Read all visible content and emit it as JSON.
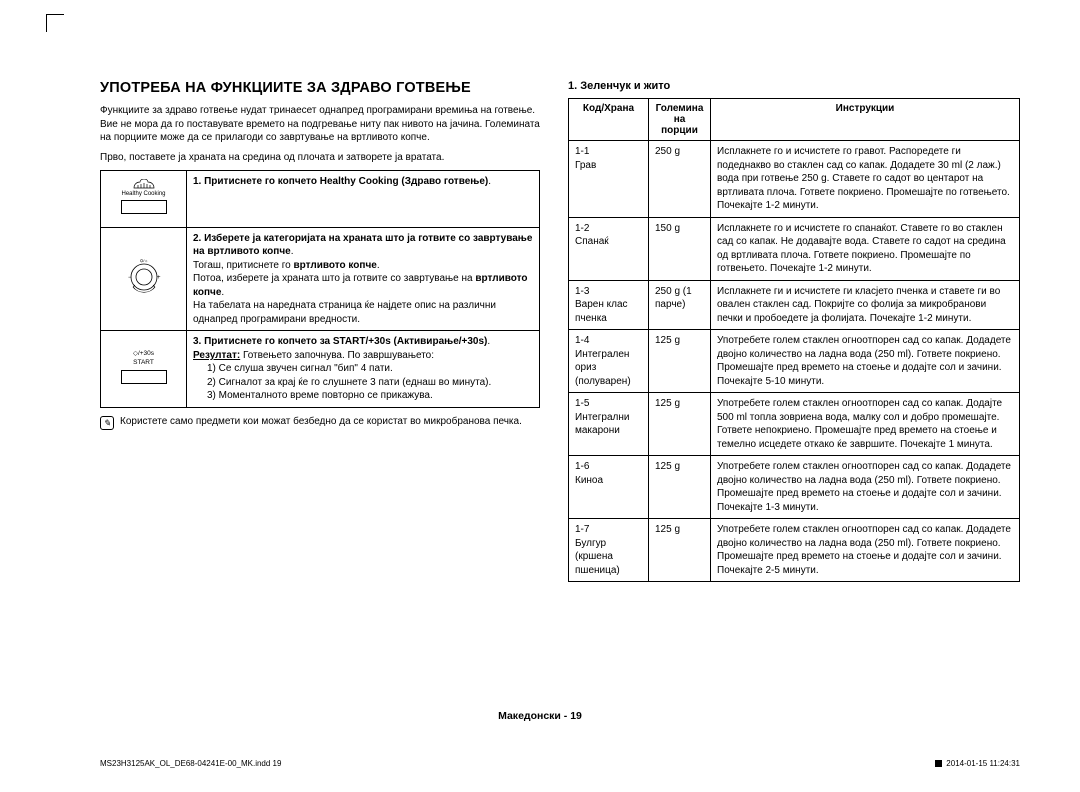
{
  "crop_mark_color": "#000000",
  "left": {
    "heading": "УПОТРЕБА НА ФУНКЦИИТЕ ЗА ЗДРАВО ГОТВЕЊЕ",
    "intro1": "Функциите за здраво готвење нудат тринаесет однапред програмирани времиња на готвење. Вие не мора да го поставувате времето на подгревање ниту пак нивото на јачина. Големината на порциите може да се прилагоди со завртување на вртливото копче.",
    "intro2": "Прво, поставете ја храната на средина од плочата и затворете ја вратата.",
    "hc_icon_label": "Healthy Cooking",
    "start_label": "START",
    "start_sym": "◇/+30s",
    "step1_pre": "1.  Притиснете го копчето ",
    "step1_bold": "Healthy Cooking (Здраво готвење)",
    "step1_post": ".",
    "step2_pre": "2.  Изберете ја категоријата на храната што ја готвите со завртување на ",
    "step2_bold1": "вртливото копче",
    "step2_mid1": ".",
    "step2_line2a": "Тогаш, притиснете го ",
    "step2_bold2": "вртливото копче",
    "step2_line2b": ".",
    "step2_line3a": "Потоа, изберете ја храната што ја готвите со завртување на ",
    "step2_bold3": "вртливото копче",
    "step2_line3b": ".",
    "step2_line4": "На табелата на наредната страница ќе најдете опис на различни однапред програмирани вредности.",
    "step3_pre": "3.  Притиснете го копчето за ",
    "step3_bold": "START/+30s (Активирање/+30s)",
    "step3_post": ".",
    "result_label": "Резултат:",
    "result_text": " Готвењето започнува. По завршувањето:",
    "res_1": "Се слуша звучен сигнал \"бип\" 4 пати.",
    "res_2": "Сигналот за крај ќе го слушнете 3 пати (еднаш во минута).",
    "res_3": "Моменталното време повторно се прикажува.",
    "note": "Користете само предмети кои можат безбедно да се користат во микробранова печка."
  },
  "right": {
    "subheading": "1. Зеленчук и жито",
    "th_code": "Код/Храна",
    "th_portion_l1": "Големина",
    "th_portion_l2": "на порции",
    "th_instr": "Инструкции",
    "rows": [
      {
        "code_num": "1-1",
        "code_name": "Грав",
        "portion": "250 g",
        "instr": "Исплакнете го и исчистете го гравот. Распоредете ги подеднакво во стаклен сад со капак. Додадете 30 ml (2 лаж.) вода при готвење 250 g. Ставете го садот во центарот на вртливата плоча. Гответе покриено. Промешајте по готвењето. Почекајте 1-2 минути."
      },
      {
        "code_num": "1-2",
        "code_name": "Спанаќ",
        "portion": "150 g",
        "instr": "Исплакнете го и исчистете го спанаќот. Ставете го во стаклен сад со капак. Не додавајте вода. Ставете го садот на средина од вртливата плоча. Гответе покриено. Промешајте по готвењето. Почекајте 1-2 минути."
      },
      {
        "code_num": "1-3",
        "code_name": "Варен клас пченка",
        "portion": "250 g (1 парче)",
        "instr": "Исплакнете ги и исчистете ги класјето пченка и ставете ги во овален стаклен сад. Покријте со фолија за микробранови печки и пробоедете ја фолијата. Почекајте 1-2 минути."
      },
      {
        "code_num": "1-4",
        "code_name": "Интегрален ориз (полуварен)",
        "portion": "125 g",
        "instr": "Употребете голем стаклен огноотпорен сад со капак. Додадете двојно количество на ладна вода (250 ml). Гответе покриено. Промешајте пред времето на стоење и додајте сол и зачини. Почекајте 5-10 минути."
      },
      {
        "code_num": "1-5",
        "code_name": "Интегрални макарони",
        "portion": "125 g",
        "instr": "Употребете голем стаклен огноотпорен сад со капак. Додајте 500 ml топла зовриена вода, малку сол и добро промешајте. Гответе непокриено. Промешајте пред времето на стоење и темелно исцедете откако ќе завршите. Почекајте 1 минута."
      },
      {
        "code_num": "1-6",
        "code_name": "Киноа",
        "portion": "125 g",
        "instr": "Употребете голем стаклен огноотпорен сад со капак. Додадете двојно количество на ладна вода (250 ml). Гответе покриено. Промешајте пред времето на стоење и додајте сол и зачини. Почекајте 1-3 минути."
      },
      {
        "code_num": "1-7",
        "code_name": "Булгур (кршена пшеница)",
        "portion": "125 g",
        "instr": "Употребете голем стаклен огноотпорен сад со капак. Додадете двојно количество на ладна вода (250 ml). Гответе покриено. Промешајте пред времето на стоење и додајте сол и зачини. Почекајте 2-5 минути."
      }
    ]
  },
  "footer": "Македонски - 19",
  "print_file": "MS23H3125AK_OL_DE68-04241E-00_MK.indd   19",
  "print_time": "2014-01-15     11:24:31"
}
